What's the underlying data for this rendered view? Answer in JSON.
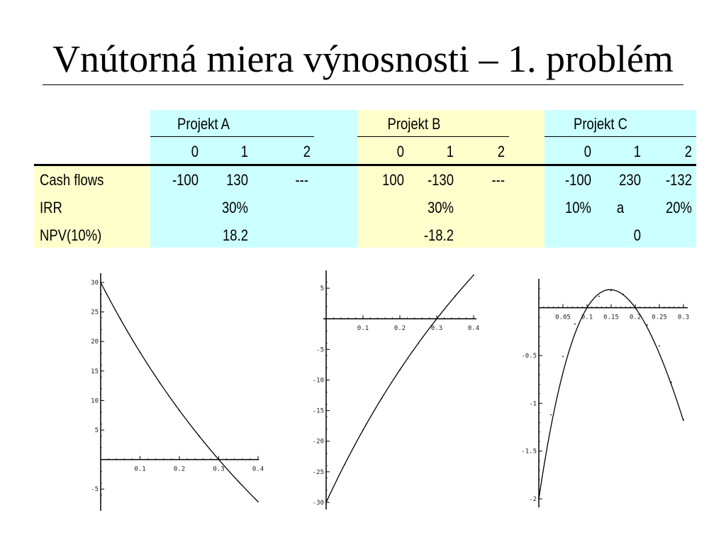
{
  "slide": {
    "title": "Vnútorná miera výnosnosti – 1. problém"
  },
  "table": {
    "row_labels": [
      "Cash flows",
      "IRR",
      "NPV(10%)"
    ],
    "projects": [
      {
        "name": "Projekt A",
        "periods": [
          "0",
          "1",
          "2"
        ],
        "cash_flows": [
          "-100",
          "130",
          "---"
        ],
        "irr": [
          "",
          "30%",
          ""
        ],
        "npv": [
          "",
          "18.2",
          ""
        ]
      },
      {
        "name": "Projekt B",
        "periods": [
          "0",
          "1",
          "2"
        ],
        "cash_flows": [
          "100",
          "-130",
          "---"
        ],
        "irr": [
          "",
          "30%",
          ""
        ],
        "npv": [
          "",
          "-18.2",
          ""
        ]
      },
      {
        "name": "Projekt C",
        "periods": [
          "0",
          "1",
          "2"
        ],
        "cash_flows": [
          "-100",
          "230",
          "-132"
        ],
        "irr": [
          "10%",
          "a",
          "20%"
        ],
        "npv": [
          "",
          "0",
          ""
        ]
      }
    ]
  },
  "colors": {
    "cyan": "#ccffff",
    "yellow": "#ffffcc",
    "ink": "#000000"
  },
  "chart_data": [
    {
      "type": "line",
      "xlabel": "",
      "ylabel": "",
      "xlim": [
        0,
        0.4
      ],
      "ylim": [
        -7.5,
        30
      ],
      "xticks": [
        0.1,
        0.2,
        0.3,
        0.4
      ],
      "yticks": [
        -5,
        5,
        10,
        15,
        20,
        25,
        30
      ],
      "xtick_labels": [
        "0.1",
        "0.2",
        "0.3",
        "0.4"
      ],
      "ytick_labels": [
        "-5",
        "5",
        "10",
        "15",
        "20",
        "25",
        "30"
      ],
      "cash_flows": [
        -100,
        130
      ],
      "x": [
        0,
        0.05,
        0.1,
        0.15,
        0.2,
        0.25,
        0.3,
        0.35,
        0.4
      ],
      "y": [
        30,
        23.81,
        18.18,
        13.04,
        8.33,
        4,
        0,
        -3.7,
        -7.14
      ]
    },
    {
      "type": "line",
      "xlabel": "",
      "ylabel": "",
      "xlim": [
        0,
        0.4
      ],
      "ylim": [
        -30,
        7.1
      ],
      "xticks": [
        0.1,
        0.2,
        0.3,
        0.4
      ],
      "yticks": [
        5,
        -5,
        -10,
        -15,
        -20,
        -25,
        -30
      ],
      "xtick_labels": [
        "0.1",
        "0.2",
        "0.3",
        "0.4"
      ],
      "ytick_labels": [
        "5",
        "-5",
        "-10",
        "-15",
        "-20",
        "-25",
        "-30"
      ],
      "cash_flows": [
        100,
        -130
      ],
      "x": [
        0,
        0.05,
        0.1,
        0.15,
        0.2,
        0.25,
        0.3,
        0.35,
        0.4
      ],
      "y": [
        -30,
        -23.81,
        -18.18,
        -13.04,
        -8.33,
        -4,
        0,
        3.7,
        7.14
      ]
    },
    {
      "type": "line",
      "xlabel": "",
      "ylabel": "",
      "xlim": [
        0,
        0.3
      ],
      "ylim": [
        -2,
        0.25
      ],
      "xticks": [
        0.05,
        0.1,
        0.15,
        0.2,
        0.25,
        0.3
      ],
      "yticks": [
        -0.5,
        -1,
        -1.5,
        -2
      ],
      "xtick_labels": [
        "0.05",
        "0.1",
        "0.15",
        "0.2",
        "0.25",
        "0.3"
      ],
      "ytick_labels": [
        "-0.5",
        "-1",
        "-1.5",
        "-2"
      ],
      "cash_flows": [
        -100,
        230,
        -132
      ],
      "x": [
        0,
        0.025,
        0.05,
        0.075,
        0.1,
        0.125,
        0.15,
        0.175,
        0.2,
        0.225,
        0.25,
        0.275,
        0.3
      ],
      "y": [
        -2,
        -1.12,
        -0.51,
        -0.17,
        0,
        0.12,
        0.18,
        0.14,
        0,
        -0.18,
        -0.4,
        -0.78,
        -1.17
      ]
    }
  ]
}
